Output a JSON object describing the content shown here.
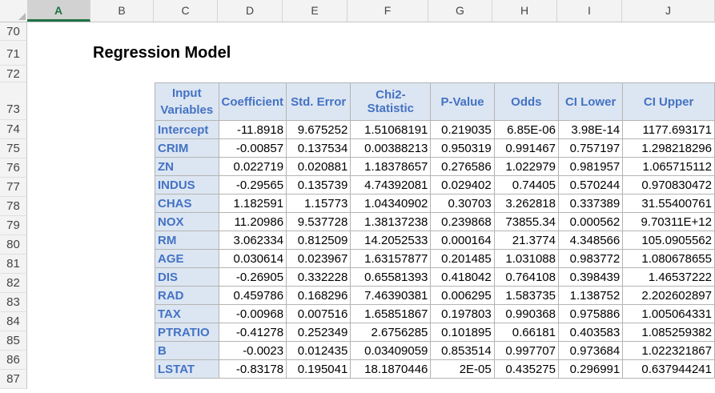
{
  "columns": [
    "A",
    "B",
    "C",
    "D",
    "E",
    "F",
    "G",
    "H",
    "I",
    "J"
  ],
  "rows": [
    "70",
    "71",
    "72",
    "73",
    "74",
    "75",
    "76",
    "77",
    "78",
    "79",
    "80",
    "81",
    "82",
    "83",
    "84",
    "85",
    "86",
    "87"
  ],
  "title": "Regression Model",
  "table": {
    "headers": [
      "Input Variables",
      "Coefficient",
      "Std. Error",
      "Chi2-Statistic",
      "P-Value",
      "Odds",
      "CI Lower",
      "CI Upper"
    ],
    "rows": [
      [
        "Intercept",
        "-11.8918",
        "9.675252",
        "1.51068191",
        "0.219035",
        "6.85E-06",
        "3.98E-14",
        "1177.693171"
      ],
      [
        "CRIM",
        "-0.00857",
        "0.137534",
        "0.00388213",
        "0.950319",
        "0.991467",
        "0.757197",
        "1.298218296"
      ],
      [
        "ZN",
        "0.022719",
        "0.020881",
        "1.18378657",
        "0.276586",
        "1.022979",
        "0.981957",
        "1.065715112"
      ],
      [
        "INDUS",
        "-0.29565",
        "0.135739",
        "4.74392081",
        "0.029402",
        "0.74405",
        "0.570244",
        "0.970830472"
      ],
      [
        "CHAS",
        "1.182591",
        "1.15773",
        "1.04340902",
        "0.30703",
        "3.262818",
        "0.337389",
        "31.55400761"
      ],
      [
        "NOX",
        "11.20986",
        "9.537728",
        "1.38137238",
        "0.239868",
        "73855.34",
        "0.000562",
        "9.70311E+12"
      ],
      [
        "RM",
        "3.062334",
        "0.812509",
        "14.2052533",
        "0.000164",
        "21.3774",
        "4.348566",
        "105.0905562"
      ],
      [
        "AGE",
        "0.030614",
        "0.023967",
        "1.63157877",
        "0.201485",
        "1.031088",
        "0.983772",
        "1.080678655"
      ],
      [
        "DIS",
        "-0.26905",
        "0.332228",
        "0.65581393",
        "0.418042",
        "0.764108",
        "0.398439",
        "1.46537222"
      ],
      [
        "RAD",
        "0.459786",
        "0.168296",
        "7.46390381",
        "0.006295",
        "1.583735",
        "1.138752",
        "2.202602897"
      ],
      [
        "TAX",
        "-0.00968",
        "0.007516",
        "1.65851867",
        "0.197803",
        "0.990368",
        "0.975886",
        "1.005064331"
      ],
      [
        "PTRATIO",
        "-0.41278",
        "0.252349",
        "2.6756285",
        "0.101895",
        "0.66181",
        "0.403583",
        "1.085259382"
      ],
      [
        "B",
        "-0.0023",
        "0.012435",
        "0.03409059",
        "0.853514",
        "0.997707",
        "0.973684",
        "1.022321867"
      ],
      [
        "LSTAT",
        "-0.83178",
        "0.195041",
        "18.1870446",
        "2E-05",
        "0.435275",
        "0.296991",
        "0.637944241"
      ]
    ]
  }
}
